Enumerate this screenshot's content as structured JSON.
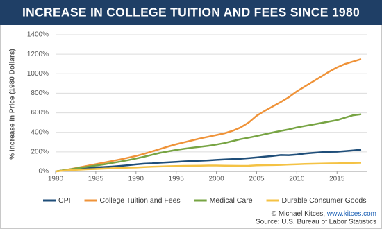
{
  "chart_data": {
    "type": "line",
    "title": "INCREASE IN COLLEGE TUITION AND FEES SINCE 1980",
    "y_label": "% Increase In Price (1980 Dollars)",
    "credit_prefix": "© Michael Kitces,",
    "credit_link": "www.kitces.com",
    "source": "Source: U.S. Bureau of Labor Statistics",
    "x": [
      1980,
      1981,
      1982,
      1983,
      1984,
      1985,
      1986,
      1987,
      1988,
      1989,
      1990,
      1991,
      1992,
      1993,
      1994,
      1995,
      1996,
      1997,
      1998,
      1999,
      2000,
      2001,
      2002,
      2003,
      2004,
      2005,
      2006,
      2007,
      2008,
      2009,
      2010,
      2011,
      2012,
      2013,
      2014,
      2015,
      2016,
      2017,
      2018
    ],
    "xlim": [
      1980,
      2018
    ],
    "xticks": [
      1980,
      1985,
      1990,
      1995,
      2000,
      2005,
      2010,
      2015
    ],
    "ylim": [
      0,
      1400
    ],
    "yticks": [
      {
        "value": 0,
        "label": "0%"
      },
      {
        "value": 200,
        "label": "200%"
      },
      {
        "value": 400,
        "label": "400%"
      },
      {
        "value": 600,
        "label": "600%"
      },
      {
        "value": 800,
        "label": "800%"
      },
      {
        "value": 1000,
        "label": "1000%"
      },
      {
        "value": 1200,
        "label": "1200%"
      },
      {
        "value": 1400,
        "label": "1400%"
      }
    ],
    "grid": true,
    "legend": "bottom",
    "series": [
      {
        "name": "CPI",
        "color": "#1f4e79",
        "values": [
          0,
          12,
          20,
          25,
          35,
          42,
          45,
          50,
          56,
          63,
          72,
          79,
          83,
          89,
          93,
          98,
          103,
          107,
          109,
          113,
          118,
          123,
          126,
          130,
          136,
          143,
          151,
          158,
          168,
          166,
          172,
          183,
          190,
          196,
          201,
          202,
          208,
          215,
          223
        ]
      },
      {
        "name": "College Tuition and Fees",
        "color": "#ef9339",
        "values": [
          0,
          12,
          26,
          42,
          58,
          74,
          90,
          106,
          122,
          140,
          158,
          180,
          205,
          230,
          255,
          278,
          298,
          318,
          338,
          355,
          372,
          390,
          415,
          450,
          500,
          570,
          620,
          665,
          710,
          760,
          820,
          870,
          920,
          970,
          1020,
          1065,
          1100,
          1125,
          1150
        ]
      },
      {
        "name": "Medical Care",
        "color": "#77a443",
        "values": [
          0,
          12,
          24,
          36,
          48,
          60,
          72,
          86,
          100,
          115,
          132,
          150,
          170,
          190,
          205,
          220,
          232,
          243,
          252,
          262,
          275,
          290,
          310,
          330,
          345,
          362,
          380,
          398,
          415,
          430,
          450,
          465,
          480,
          495,
          510,
          525,
          550,
          575,
          585
        ]
      },
      {
        "name": "Durable Consumer Goods",
        "color": "#f4c244",
        "values": [
          0,
          8,
          14,
          18,
          22,
          25,
          28,
          32,
          35,
          38,
          40,
          44,
          48,
          51,
          53,
          55,
          57,
          58,
          59,
          60,
          60,
          59,
          58,
          57,
          58,
          62,
          64,
          65,
          67,
          70,
          73,
          76,
          78,
          80,
          82,
          83,
          85,
          87,
          89
        ]
      }
    ]
  }
}
